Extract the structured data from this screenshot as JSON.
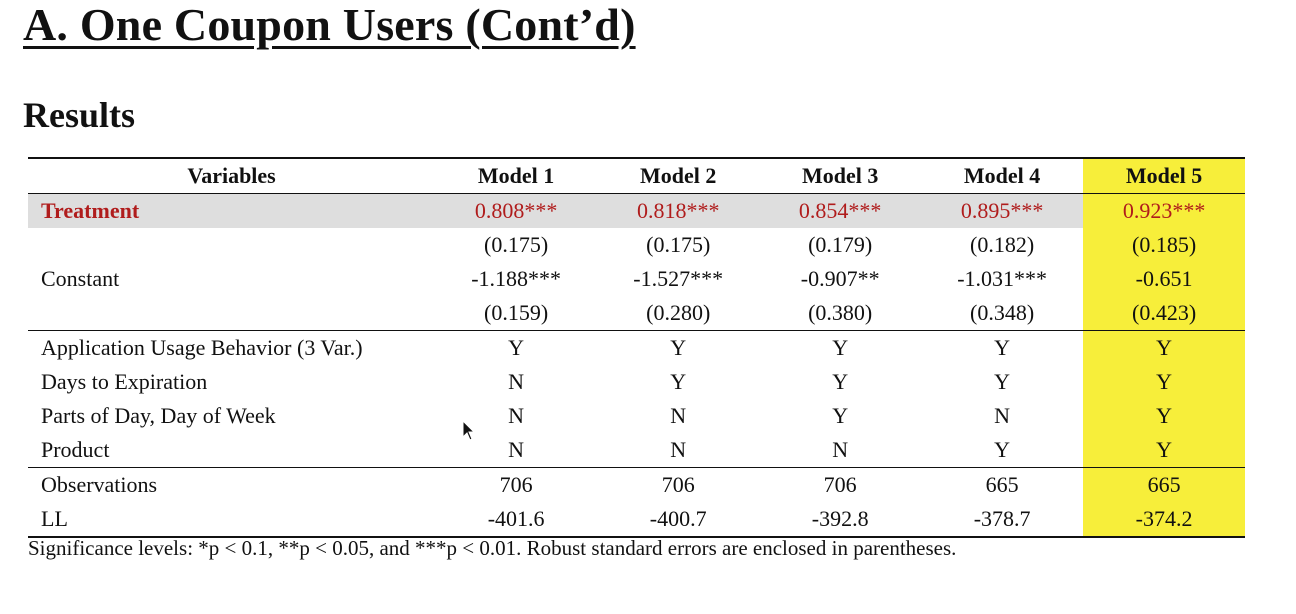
{
  "slide": {
    "title": "A. One Coupon Users (Cont’d)",
    "subtitle": "Results"
  },
  "table": {
    "headers": [
      "Variables",
      "Model 1",
      "Model 2",
      "Model 3",
      "Model 4",
      "Model 5"
    ],
    "treatment": {
      "label": "Treatment",
      "coef": [
        "0.808***",
        "0.818***",
        "0.854***",
        "0.895***",
        "0.923***"
      ],
      "se": [
        "(0.175)",
        "(0.175)",
        "(0.179)",
        "(0.182)",
        "(0.185)"
      ]
    },
    "constant": {
      "label": "Constant",
      "coef": [
        "-1.188***",
        "-1.527***",
        "-0.907**",
        "-1.031***",
        "-0.651"
      ],
      "se": [
        "(0.159)",
        "(0.280)",
        "(0.380)",
        "(0.348)",
        "(0.423)"
      ]
    },
    "controls": [
      {
        "label": "Application Usage Behavior (3 Var.)",
        "values": [
          "Y",
          "Y",
          "Y",
          "Y",
          "Y"
        ]
      },
      {
        "label": "Days to Expiration",
        "values": [
          "N",
          "Y",
          "Y",
          "Y",
          "Y"
        ]
      },
      {
        "label": "Parts of Day, Day of Week",
        "values": [
          "N",
          "N",
          "Y",
          "N",
          "Y"
        ]
      },
      {
        "label": "Product",
        "values": [
          "N",
          "N",
          "N",
          "Y",
          "Y"
        ]
      }
    ],
    "stats": [
      {
        "label": "Observations",
        "values": [
          "706",
          "706",
          "706",
          "665",
          "665"
        ]
      },
      {
        "label": "LL",
        "values": [
          "-401.6",
          "-400.7",
          "-392.8",
          "-378.7",
          "-374.2"
        ]
      }
    ],
    "note": "Significance levels: *p < 0.1, **p < 0.05, and ***p < 0.01. Robust standard errors are enclosed in parentheses."
  },
  "colors": {
    "highlight": "#f7ee3a",
    "treatment_text": "#b01c1c",
    "treatment_band": "#dedede"
  },
  "cursor_icon": "mouse-pointer-icon"
}
